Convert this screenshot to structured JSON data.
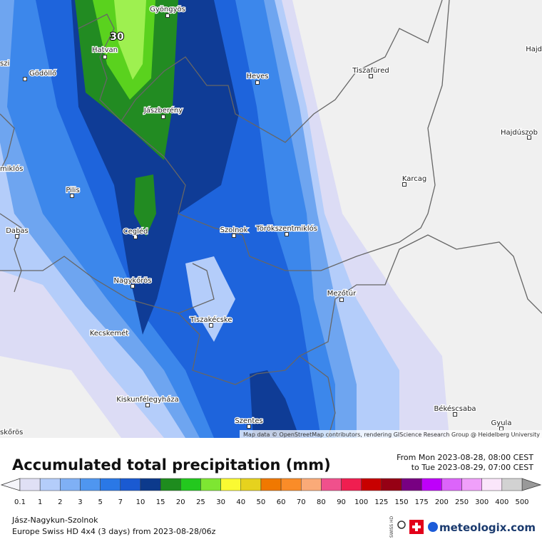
{
  "map": {
    "cities": [
      "Gyöngyös",
      "Hatvan",
      "Gödöllő",
      "Heves",
      "Tiszafüred",
      "Jászberény",
      "Hajdúszob",
      "Karcag",
      "Pilis",
      "Dabas",
      "Cegléd",
      "Szolnok",
      "Törökszentmiklós",
      "Nagykőrös",
      "Mezőtúr",
      "Tiszakécske",
      "Kecskemét",
      "Kiskunfélegyháza",
      "Szentes",
      "Békéscsaba",
      "Gyula",
      "Hajd",
      "szi",
      "miklós",
      "skőrös"
    ],
    "contour_label": "30",
    "attribution": "Map data © OpenStreetMap contributors, rendering GIScience Research Group @ Heidelberg University"
  },
  "legend": {
    "title": "Accumulated total precipitation (mm)",
    "period_from": "From Mon 2023-08-28, 08:00 CEST",
    "period_to": "to Tue 2023-08-29, 07:00 CEST",
    "ticks": [
      "0.1",
      "1",
      "2",
      "3",
      "5",
      "7",
      "10",
      "15",
      "20",
      "25",
      "30",
      "40",
      "50",
      "60",
      "70",
      "80",
      "90",
      "100",
      "125",
      "150",
      "175",
      "200",
      "250",
      "300",
      "400",
      "500"
    ]
  },
  "footer": {
    "region": "Jász-Nagykun-Szolnok",
    "model": "Europe Swiss HD 4x4 (3 days) from 2023-08-28/06z",
    "badge": "SWISS HD",
    "brand": "meteologix.com"
  }
}
